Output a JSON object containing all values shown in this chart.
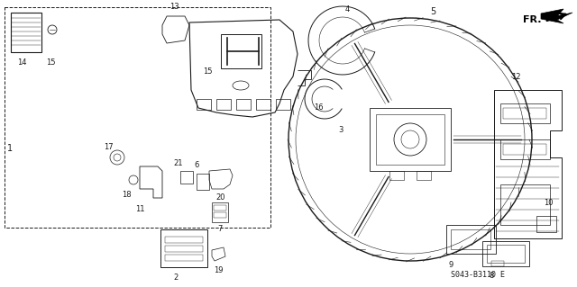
{
  "background_color": "#ffffff",
  "diagram_code": "S043-B3110 E",
  "fig_width": 6.4,
  "fig_height": 3.19,
  "dpi": 100,
  "image_b64": ""
}
